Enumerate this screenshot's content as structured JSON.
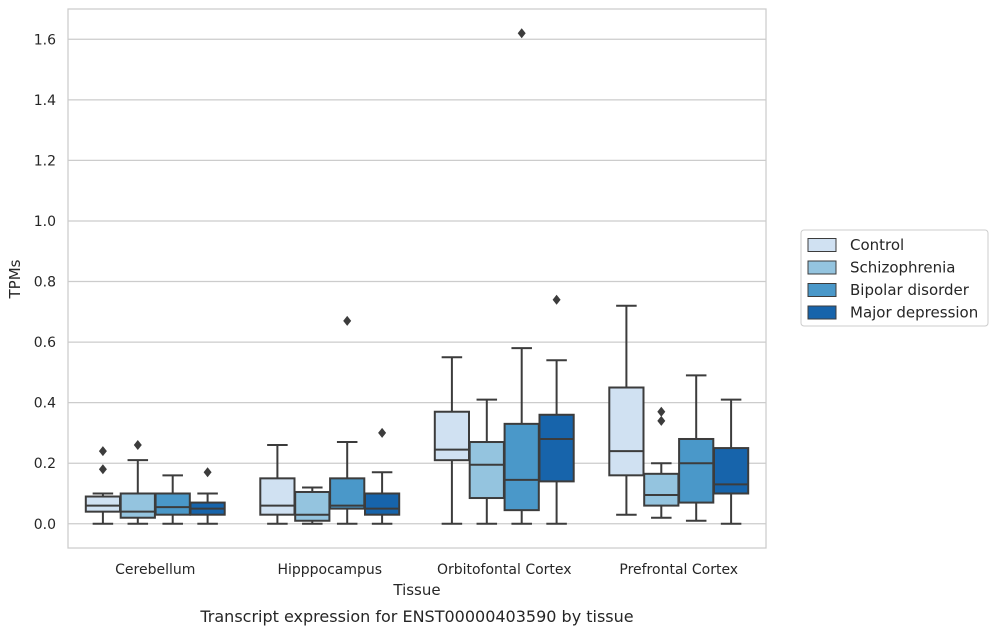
{
  "chart_data": {
    "type": "box",
    "categories": [
      "Cerebellum",
      "Hipppocampus",
      "Orbitofontal Cortex",
      "Prefrontal Cortex"
    ],
    "xlabel": "Tissue",
    "ylabel": "TPMs",
    "caption": "Transcript expression for ENST00000403590 by tissue",
    "ylim": [
      -0.08,
      1.7
    ],
    "yticks": [
      "0.0",
      "0.2",
      "0.4",
      "0.6",
      "0.8",
      "1.0",
      "1.2",
      "1.4",
      "1.6"
    ],
    "grid": "horizontal",
    "legend_position": "right",
    "series": [
      {
        "name": "Control",
        "color": "#d0e1f2",
        "boxes": [
          {
            "whislo": 0.0,
            "q1": 0.04,
            "med": 0.06,
            "q3": 0.09,
            "whishi": 0.1,
            "fliers": [
              0.18,
              0.24
            ]
          },
          {
            "whislo": 0.0,
            "q1": 0.03,
            "med": 0.06,
            "q3": 0.15,
            "whishi": 0.26,
            "fliers": []
          },
          {
            "whislo": 0.0,
            "q1": 0.21,
            "med": 0.245,
            "q3": 0.37,
            "whishi": 0.55,
            "fliers": []
          },
          {
            "whislo": 0.03,
            "q1": 0.16,
            "med": 0.24,
            "q3": 0.45,
            "whishi": 0.72,
            "fliers": []
          }
        ]
      },
      {
        "name": "Schizophrenia",
        "color": "#94c4df",
        "boxes": [
          {
            "whislo": 0.0,
            "q1": 0.02,
            "med": 0.04,
            "q3": 0.1,
            "whishi": 0.21,
            "fliers": [
              0.26
            ]
          },
          {
            "whislo": 0.0,
            "q1": 0.01,
            "med": 0.03,
            "q3": 0.105,
            "whishi": 0.12,
            "fliers": []
          },
          {
            "whislo": 0.0,
            "q1": 0.085,
            "med": 0.195,
            "q3": 0.27,
            "whishi": 0.41,
            "fliers": []
          },
          {
            "whislo": 0.02,
            "q1": 0.06,
            "med": 0.095,
            "q3": 0.165,
            "whishi": 0.2,
            "fliers": [
              0.34,
              0.37
            ]
          }
        ]
      },
      {
        "name": "Bipolar disorder",
        "color": "#4a98c9",
        "boxes": [
          {
            "whislo": 0.0,
            "q1": 0.03,
            "med": 0.055,
            "q3": 0.1,
            "whishi": 0.16,
            "fliers": []
          },
          {
            "whislo": 0.0,
            "q1": 0.05,
            "med": 0.06,
            "q3": 0.15,
            "whishi": 0.27,
            "fliers": [
              0.67
            ]
          },
          {
            "whislo": 0.0,
            "q1": 0.045,
            "med": 0.145,
            "q3": 0.33,
            "whishi": 0.58,
            "fliers": [
              1.62
            ]
          },
          {
            "whislo": 0.01,
            "q1": 0.07,
            "med": 0.2,
            "q3": 0.28,
            "whishi": 0.49,
            "fliers": []
          }
        ]
      },
      {
        "name": "Major depression",
        "color": "#1764ab",
        "boxes": [
          {
            "whislo": 0.0,
            "q1": 0.03,
            "med": 0.05,
            "q3": 0.07,
            "whishi": 0.1,
            "fliers": [
              0.17
            ]
          },
          {
            "whislo": 0.0,
            "q1": 0.03,
            "med": 0.05,
            "q3": 0.1,
            "whishi": 0.17,
            "fliers": [
              0.3
            ]
          },
          {
            "whislo": 0.0,
            "q1": 0.14,
            "med": 0.28,
            "q3": 0.36,
            "whishi": 0.54,
            "fliers": [
              0.74
            ]
          },
          {
            "whislo": 0.0,
            "q1": 0.1,
            "med": 0.13,
            "q3": 0.25,
            "whishi": 0.41,
            "fliers": []
          }
        ]
      }
    ]
  }
}
